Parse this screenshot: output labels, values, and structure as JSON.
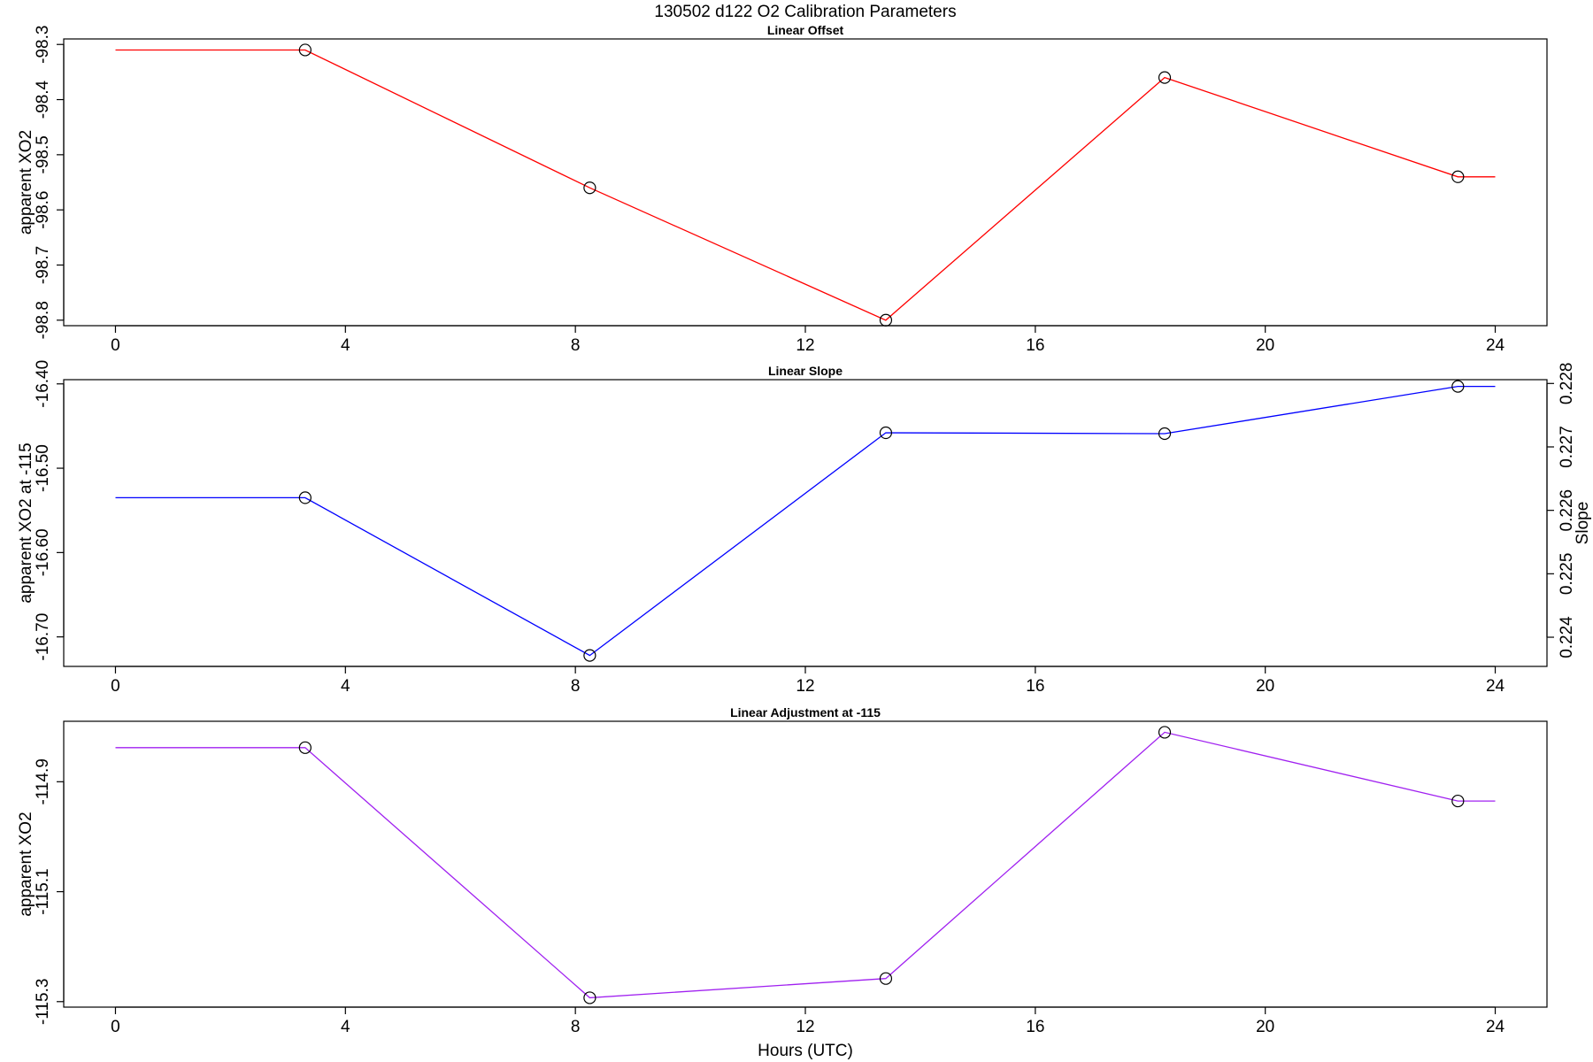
{
  "figure": {
    "title": "130502   d122   O2 Calibration Parameters",
    "xlabel": "Hours (UTC)"
  },
  "chart_data": [
    {
      "type": "line",
      "title": "Linear Offset",
      "ylabel": "apparent XO2",
      "xlim": [
        -0.9,
        24.9
      ],
      "ylim": [
        -98.81,
        -98.29
      ],
      "x_ticks": [
        0,
        4,
        8,
        12,
        16,
        20,
        24
      ],
      "y_ticks": [
        -98.8,
        -98.7,
        -98.6,
        -98.5,
        -98.4,
        -98.3
      ],
      "y_tick_labels": [
        "-98.8",
        "-98.7",
        "-98.6",
        "-98.5",
        "-98.4",
        "-98.3"
      ],
      "series": [
        {
          "color": "#ff0000",
          "x": [
            0,
            3.3,
            8.25,
            13.4,
            18.25,
            23.35,
            24
          ],
          "y": [
            -98.31,
            -98.31,
            -98.56,
            -98.8,
            -98.36,
            -98.54,
            -98.54
          ]
        }
      ],
      "markers": {
        "x": [
          3.3,
          8.25,
          13.4,
          18.25,
          23.35
        ],
        "y": [
          -98.31,
          -98.56,
          -98.8,
          -98.36,
          -98.54
        ]
      }
    },
    {
      "type": "line",
      "title": "Linear Slope",
      "ylabel": "apparent XO2 at -115",
      "y2label": "Slope",
      "xlim": [
        -0.9,
        24.9
      ],
      "ylim": [
        -16.735,
        -16.395
      ],
      "x_ticks": [
        0,
        4,
        8,
        12,
        16,
        20,
        24
      ],
      "y_ticks": [
        -16.7,
        -16.6,
        -16.5,
        -16.4
      ],
      "y_tick_labels": [
        "-16.70",
        "-16.60",
        "-16.50",
        "-16.40"
      ],
      "y2lim": [
        0.22354,
        0.22806
      ],
      "y2_ticks": [
        0.224,
        0.225,
        0.226,
        0.227,
        0.228
      ],
      "y2_tick_labels": [
        "0.224",
        "0.225",
        "0.226",
        "0.227",
        "0.228"
      ],
      "series": [
        {
          "color": "#0000ff",
          "x": [
            0,
            3.3,
            8.25,
            13.4,
            18.25,
            23.35,
            24
          ],
          "y": [
            -16.535,
            -16.535,
            -16.722,
            -16.458,
            -16.459,
            -16.403,
            -16.403
          ]
        }
      ],
      "markers": {
        "x": [
          3.3,
          8.25,
          13.4,
          18.25,
          23.35
        ],
        "y": [
          -16.535,
          -16.722,
          -16.458,
          -16.459,
          -16.403
        ]
      }
    },
    {
      "type": "line",
      "title": "Linear Adjustment at -115",
      "ylabel": "apparent XO2",
      "xlim": [
        -0.9,
        24.9
      ],
      "ylim": [
        -115.31,
        -114.79
      ],
      "x_ticks": [
        0,
        4,
        8,
        12,
        16,
        20,
        24
      ],
      "y_ticks": [
        -115.3,
        -115.1,
        -114.9
      ],
      "y_tick_labels": [
        "-115.3",
        "-115.1",
        "-114.9"
      ],
      "series": [
        {
          "color": "#a020f0",
          "x": [
            0,
            3.3,
            8.25,
            13.4,
            18.25,
            23.35,
            24
          ],
          "y": [
            -114.838,
            -114.838,
            -115.293,
            -115.258,
            -114.81,
            -114.935,
            -114.935
          ]
        }
      ],
      "markers": {
        "x": [
          3.3,
          8.25,
          13.4,
          18.25,
          23.35
        ],
        "y": [
          -114.838,
          -115.293,
          -115.258,
          -114.81,
          -114.935
        ]
      }
    }
  ]
}
